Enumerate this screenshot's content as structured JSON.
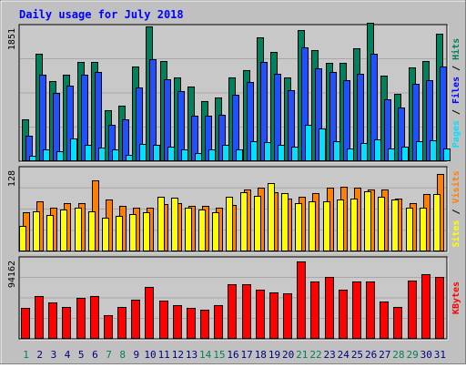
{
  "chart_data": {
    "type": "bar",
    "title": "Daily usage for July 2018",
    "categories": [
      "1",
      "2",
      "3",
      "4",
      "5",
      "6",
      "7",
      "8",
      "9",
      "10",
      "11",
      "12",
      "13",
      "14",
      "15",
      "16",
      "17",
      "18",
      "19",
      "20",
      "21",
      "22",
      "23",
      "24",
      "25",
      "26",
      "27",
      "28",
      "29",
      "30",
      "31"
    ],
    "weekend_days": [
      "1",
      "7",
      "8",
      "14",
      "15",
      "21",
      "22",
      "28",
      "29"
    ],
    "panels": [
      {
        "id": "hits",
        "ylabel_parts": [
          "Pages",
          "Files",
          "Hits"
        ],
        "max_label": "1851",
        "ylim": [
          0,
          1851
        ],
        "series": [
          {
            "name": "Hits",
            "color": "#00805c",
            "values": [
              580,
              1480,
              1100,
              1190,
              1360,
              1360,
              700,
              760,
              1300,
              1850,
              1370,
              1150,
              1020,
              820,
              880,
              1150,
              1250,
              1700,
              1500,
              1150,
              1800,
              1520,
              1350,
              1350,
              1550,
              1900,
              1180,
              920,
              1290,
              1370,
              1750
            ]
          },
          {
            "name": "Files",
            "color": "#2050ff",
            "values": [
              350,
              1190,
              940,
              1040,
              1190,
              1230,
              500,
              570,
              1010,
              1400,
              1130,
              960,
              630,
              620,
              640,
              910,
              1090,
              1360,
              1200,
              980,
              1560,
              1270,
              1220,
              1110,
              1200,
              1480,
              850,
              740,
              1060,
              1110,
              1300
            ]
          },
          {
            "name": "Pages",
            "color": "#00e0ff",
            "values": [
              70,
              160,
              140,
              310,
              220,
              190,
              160,
              90,
              240,
              220,
              200,
              160,
              110,
              160,
              220,
              160,
              270,
              260,
              220,
              200,
              500,
              450,
              270,
              180,
              250,
              300,
              170,
              200,
              270,
              290,
              170
            ]
          }
        ]
      },
      {
        "id": "visits",
        "ylabel_parts": [
          "Sites",
          "Visits"
        ],
        "max_label": "128",
        "ylim": [
          0,
          128
        ],
        "series": [
          {
            "name": "Visits",
            "color": "#ff8000",
            "values": [
              60,
              77,
              67,
              75,
              75,
              110,
              80,
              70,
              68,
              67,
              73,
              75,
              70,
              70,
              68,
              72,
              95,
              98,
              92,
              81,
              85,
              90,
              98,
              100,
              99,
              95,
              95,
              81,
              75,
              89,
              120
            ]
          },
          {
            "name": "Sites",
            "color": "#ffff00",
            "values": [
              40,
              62,
              56,
              64,
              67,
              62,
              52,
              55,
              57,
              61,
              85,
              83,
              68,
              65,
              60,
              85,
              92,
              86,
              105,
              90,
              75,
              78,
              77,
              80,
              82,
              93,
              84,
              80,
              68,
              68,
              88
            ]
          }
        ]
      },
      {
        "id": "kbytes",
        "ylabel_parts": [
          "KBytes"
        ],
        "max_label": "94162",
        "ylim": [
          0,
          94162
        ],
        "series": [
          {
            "name": "KBytes",
            "color": "#ff0000",
            "values": [
              36000,
              50000,
              43000,
              37000,
              48000,
              50000,
              28000,
              37000,
              46000,
              61000,
              45000,
              40000,
              36000,
              34000,
              40000,
              64000,
              64000,
              58000,
              55000,
              54000,
              91000,
              67000,
              73000,
              58000,
              67000,
              67000,
              44000,
              37000,
              68000,
              76000,
              73000
            ]
          }
        ]
      }
    ],
    "colors": {
      "background": "#c0c0c0",
      "plot_bg": "#c8c8c8",
      "title": "#0000ff",
      "axis_label": "#000000",
      "weekday_label": "#000080",
      "weekend_label": "#00805c",
      "kbytes_label": "#ff0000",
      "visits_label": "#ff8000",
      "sites_label": "#ffff00",
      "files_label": "#0000ff",
      "pages_label": "#00e0ff",
      "hits_label": "#00805c"
    }
  }
}
